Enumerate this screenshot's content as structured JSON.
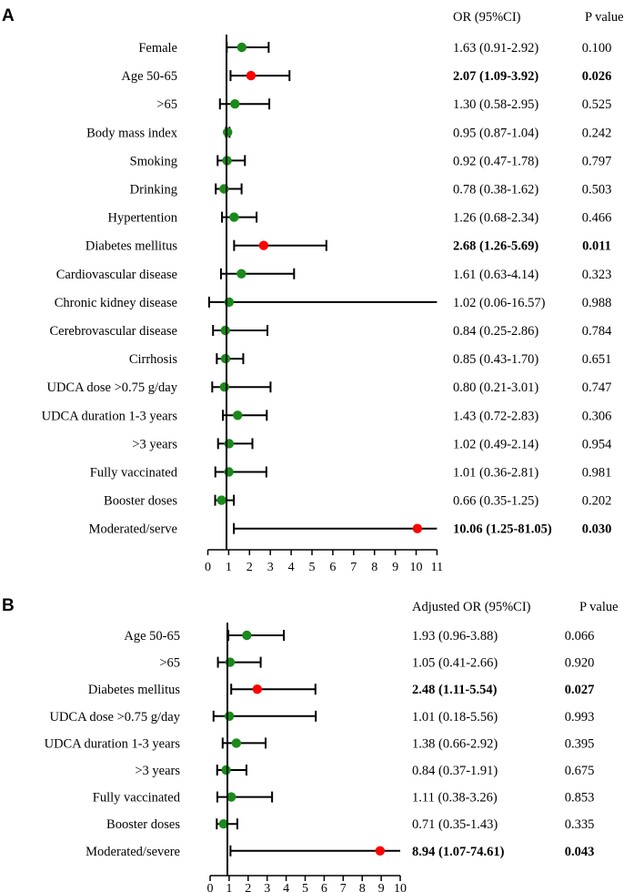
{
  "colors": {
    "significant": "#ff0000",
    "nonsignificant": "#1a8a1a",
    "line": "#000000"
  },
  "chart_data": [
    {
      "type": "forest",
      "panel": "A",
      "or_header": "OR (95%CI)",
      "p_header": "P value",
      "xlim": [
        0,
        11
      ],
      "xticks": [
        "0",
        "1",
        "2",
        "3",
        "4",
        "5",
        "6",
        "7",
        "8",
        "9",
        "10",
        "11"
      ],
      "rows": [
        {
          "label": "Female",
          "or": 1.63,
          "lo": 0.91,
          "hi": 2.92,
          "or_text": "1.63 (0.91-2.92)",
          "p_text": "0.100",
          "sig": false
        },
        {
          "label": "Age  50-65",
          "or": 2.07,
          "lo": 1.09,
          "hi": 3.92,
          "or_text": "2.07 (1.09-3.92)",
          "p_text": "0.026",
          "sig": true
        },
        {
          "label": ">65",
          "or": 1.3,
          "lo": 0.58,
          "hi": 2.95,
          "or_text": "1.30 (0.58-2.95)",
          "p_text": "0.525",
          "sig": false
        },
        {
          "label": "Body mass index",
          "or": 0.95,
          "lo": 0.87,
          "hi": 1.04,
          "or_text": "0.95 (0.87-1.04)",
          "p_text": "0.242",
          "sig": false
        },
        {
          "label": "Smoking",
          "or": 0.92,
          "lo": 0.47,
          "hi": 1.78,
          "or_text": "0.92 (0.47-1.78)",
          "p_text": "0.797",
          "sig": false
        },
        {
          "label": "Drinking",
          "or": 0.78,
          "lo": 0.38,
          "hi": 1.62,
          "or_text": "0.78 (0.38-1.62)",
          "p_text": "0.503",
          "sig": false
        },
        {
          "label": "Hypertention",
          "or": 1.26,
          "lo": 0.68,
          "hi": 2.34,
          "or_text": "1.26 (0.68-2.34)",
          "p_text": "0.466",
          "sig": false
        },
        {
          "label": "Diabetes mellitus",
          "or": 2.68,
          "lo": 1.26,
          "hi": 5.69,
          "or_text": "2.68 (1.26-5.69)",
          "p_text": "0.011",
          "sig": true
        },
        {
          "label": "Cardiovascular disease",
          "or": 1.61,
          "lo": 0.63,
          "hi": 4.14,
          "or_text": "1.61 (0.63-4.14)",
          "p_text": "0.323",
          "sig": false
        },
        {
          "label": "Chronic kidney disease",
          "or": 1.02,
          "lo": 0.06,
          "hi": 16.57,
          "or_text": "1.02 (0.06-16.57)",
          "p_text": "0.988",
          "sig": false
        },
        {
          "label": "Cerebrovascular disease",
          "or": 0.84,
          "lo": 0.25,
          "hi": 2.86,
          "or_text": "0.84 (0.25-2.86)",
          "p_text": "0.784",
          "sig": false
        },
        {
          "label": "Cirrhosis",
          "or": 0.85,
          "lo": 0.43,
          "hi": 1.7,
          "or_text": "0.85 (0.43-1.70)",
          "p_text": "0.651",
          "sig": false
        },
        {
          "label": "UDCA dose >0.75 g/day",
          "or": 0.8,
          "lo": 0.21,
          "hi": 3.01,
          "or_text": "0.80 (0.21-3.01)",
          "p_text": "0.747",
          "sig": false
        },
        {
          "label": "UDCA duration  1-3 years",
          "or": 1.43,
          "lo": 0.72,
          "hi": 2.83,
          "or_text": "1.43 (0.72-2.83)",
          "p_text": "0.306",
          "sig": false
        },
        {
          "label": ">3 years",
          "or": 1.02,
          "lo": 0.49,
          "hi": 2.14,
          "or_text": "1.02 (0.49-2.14)",
          "p_text": "0.954",
          "sig": false
        },
        {
          "label": "Fully vaccinated",
          "or": 1.01,
          "lo": 0.36,
          "hi": 2.81,
          "or_text": "1.01 (0.36-2.81)",
          "p_text": "0.981",
          "sig": false
        },
        {
          "label": "Booster doses",
          "or": 0.66,
          "lo": 0.35,
          "hi": 1.25,
          "or_text": "0.66 (0.35-1.25)",
          "p_text": "0.202",
          "sig": false
        },
        {
          "label": "Moderated/serve",
          "or": 10.06,
          "lo": 1.25,
          "hi": 81.05,
          "or_text": "10.06 (1.25-81.05)",
          "p_text": "0.030",
          "sig": true
        }
      ]
    },
    {
      "type": "forest",
      "panel": "B",
      "or_header": "Adjusted OR (95%CI)",
      "p_header": "P value",
      "xlim": [
        0,
        10
      ],
      "xticks": [
        "0",
        "1",
        "2",
        "3",
        "4",
        "5",
        "6",
        "7",
        "8",
        "9",
        "10"
      ],
      "rows": [
        {
          "label": "Age 50-65",
          "or": 1.93,
          "lo": 0.96,
          "hi": 3.88,
          "or_text": "1.93 (0.96-3.88)",
          "p_text": "0.066",
          "sig": false
        },
        {
          "label": ">65",
          "or": 1.05,
          "lo": 0.41,
          "hi": 2.66,
          "or_text": "1.05 (0.41-2.66)",
          "p_text": "0.920",
          "sig": false
        },
        {
          "label": "Diabetes mellitus",
          "or": 2.48,
          "lo": 1.11,
          "hi": 5.54,
          "or_text": "2.48 (1.11-5.54)",
          "p_text": "0.027",
          "sig": true
        },
        {
          "label": "UDCA dose >0.75 g/day",
          "or": 1.01,
          "lo": 0.18,
          "hi": 5.56,
          "or_text": "1.01 (0.18-5.56)",
          "p_text": "0.993",
          "sig": false
        },
        {
          "label": "UDCA duration 1-3 years",
          "or": 1.38,
          "lo": 0.66,
          "hi": 2.92,
          "or_text": "1.38 (0.66-2.92)",
          "p_text": "0.395",
          "sig": false
        },
        {
          "label": ">3 years",
          "or": 0.84,
          "lo": 0.37,
          "hi": 1.91,
          "or_text": "0.84 (0.37-1.91)",
          "p_text": "0.675",
          "sig": false
        },
        {
          "label": "Fully vaccinated",
          "or": 1.11,
          "lo": 0.38,
          "hi": 3.26,
          "or_text": "1.11 (0.38-3.26)",
          "p_text": "0.853",
          "sig": false
        },
        {
          "label": "Booster doses",
          "or": 0.71,
          "lo": 0.35,
          "hi": 1.43,
          "or_text": "0.71 (0.35-1.43)",
          "p_text": "0.335",
          "sig": false
        },
        {
          "label": "Moderated/severe",
          "or": 8.94,
          "lo": 1.07,
          "hi": 74.61,
          "or_text": "8.94 (1.07-74.61)",
          "p_text": "0.043",
          "sig": true
        }
      ]
    }
  ]
}
